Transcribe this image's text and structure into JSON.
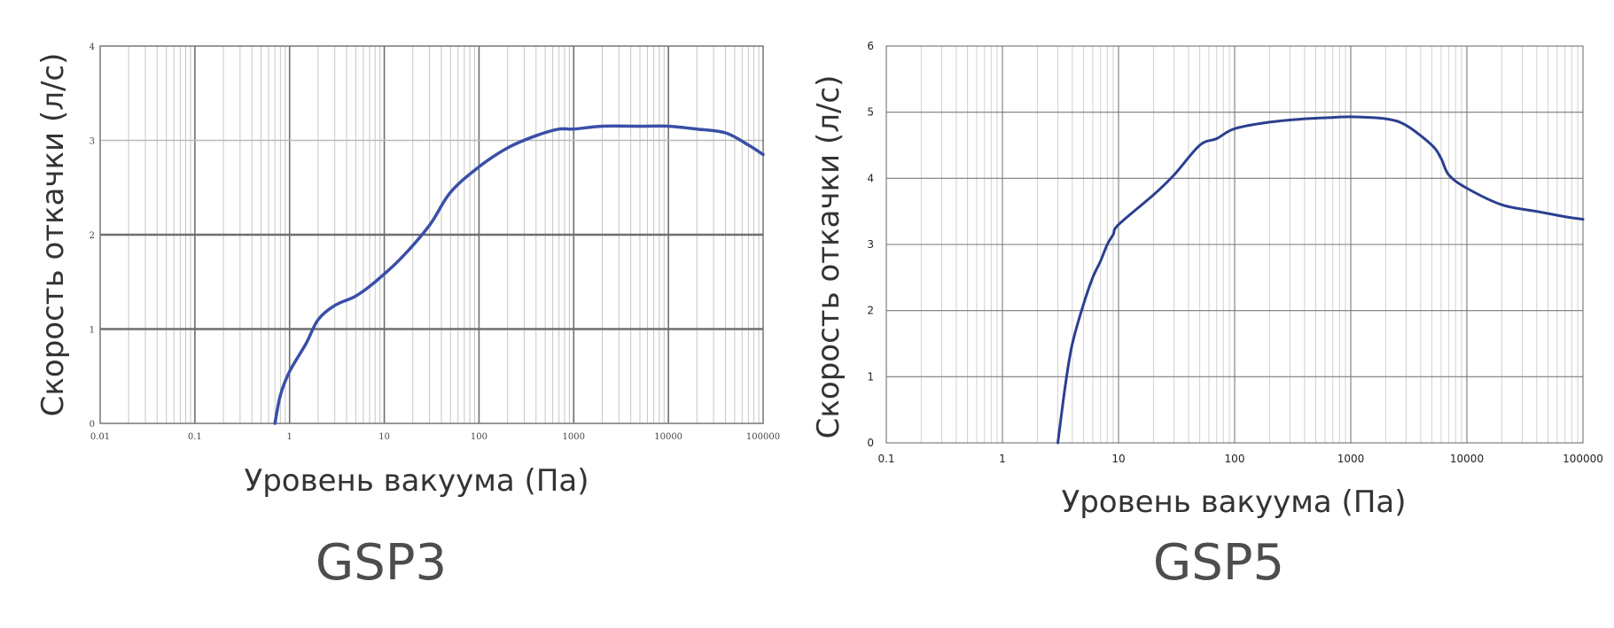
{
  "chart_data": [
    {
      "type": "line",
      "model_label": "GSP3",
      "xlabel": "Уровень вакуума (Па)",
      "ylabel": "Скорость откачки (л/с)",
      "x_scale": "log",
      "xlim": [
        0.01,
        100000
      ],
      "ylim": [
        0,
        4
      ],
      "x_ticks": [
        "0.01",
        "0.1",
        "1",
        "10",
        "100",
        "1000",
        "10000",
        "100000"
      ],
      "y_ticks": [
        "0",
        "1",
        "2",
        "3",
        "4"
      ],
      "grid": true,
      "line_color": "#3a4fa8",
      "series": [
        {
          "x": [
            0.7,
            0.8,
            1,
            1.5,
            2,
            3,
            5,
            8,
            15,
            30,
            50,
            100,
            200,
            400,
            700,
            1000,
            2000,
            5000,
            10000,
            20000,
            40000,
            70000,
            100000
          ],
          "y": [
            0,
            0.3,
            0.55,
            0.85,
            1.1,
            1.25,
            1.35,
            1.5,
            1.75,
            2.1,
            2.45,
            2.72,
            2.92,
            3.05,
            3.12,
            3.12,
            3.15,
            3.15,
            3.15,
            3.12,
            3.08,
            2.95,
            2.85
          ]
        }
      ]
    },
    {
      "type": "line",
      "model_label": "GSP5",
      "xlabel": "Уровень вакуума (Па)",
      "ylabel": "Скорость откачки (л/с)",
      "x_scale": "log",
      "xlim": [
        0.1,
        100000
      ],
      "ylim": [
        0,
        6
      ],
      "x_ticks": [
        "0.1",
        "1",
        "10",
        "100",
        "1000",
        "10000",
        "100000"
      ],
      "y_ticks": [
        "0",
        "1",
        "2",
        "3",
        "4",
        "5",
        "6"
      ],
      "grid": true,
      "line_color": "#2b3f8f",
      "series": [
        {
          "x": [
            3,
            3.5,
            4,
            5,
            6,
            7,
            8,
            9,
            10,
            20,
            30,
            50,
            70,
            100,
            200,
            400,
            700,
            1000,
            2000,
            3000,
            5000,
            6000,
            7000,
            10000,
            20000,
            40000,
            70000,
            100000
          ],
          "y": [
            0,
            0.9,
            1.5,
            2.1,
            2.5,
            2.75,
            3.0,
            3.15,
            3.3,
            3.75,
            4.05,
            4.5,
            4.6,
            4.75,
            4.85,
            4.9,
            4.92,
            4.93,
            4.9,
            4.8,
            4.5,
            4.3,
            4.05,
            3.85,
            3.6,
            3.5,
            3.42,
            3.38
          ]
        }
      ]
    }
  ]
}
